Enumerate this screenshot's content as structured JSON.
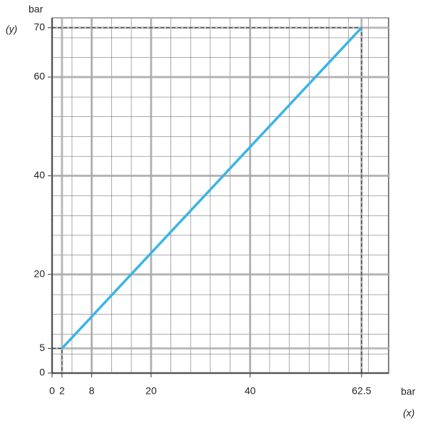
{
  "chart_data": {
    "type": "line",
    "x_axis_label": "bar",
    "x_axis_symbol": "(x)",
    "y_axis_label": "bar",
    "y_axis_symbol": "(y)",
    "x": [
      2,
      62.5
    ],
    "series": [
      {
        "color": "#3ab4e6",
        "values": [
          5,
          70
        ]
      }
    ],
    "xlim": [
      0,
      68
    ],
    "ylim": [
      0,
      72
    ],
    "xticks": [
      0,
      2,
      8,
      20,
      40,
      62.5
    ],
    "yticks": [
      0,
      5,
      20,
      40,
      60,
      70
    ],
    "grid": true,
    "guides": true
  }
}
